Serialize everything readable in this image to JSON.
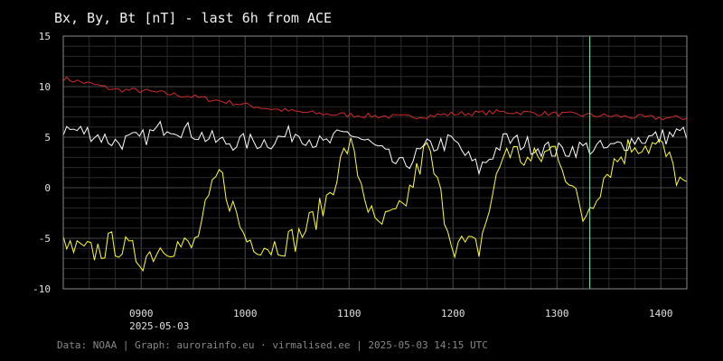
{
  "chart_data": {
    "type": "line",
    "title": "Bx, By, Bt [nT] - last 6h from ACE",
    "xlabel": "",
    "ylabel": "",
    "x_range": [
      "2025-05-03 08:15",
      "2025-05-03 14:15"
    ],
    "ylim": [
      -10,
      15
    ],
    "y_ticks": [
      15,
      10,
      5,
      0,
      -5,
      -10
    ],
    "x_ticks": [
      {
        "time": "09:00",
        "label": "0900",
        "sublabel": "2025-05-03"
      },
      {
        "time": "10:00",
        "label": "1000",
        "sublabel": ""
      },
      {
        "time": "11:00",
        "label": "1100",
        "sublabel": ""
      },
      {
        "time": "12:00",
        "label": "1200",
        "sublabel": ""
      },
      {
        "time": "13:00",
        "label": "1300",
        "sublabel": ""
      },
      {
        "time": "14:00",
        "label": "1400",
        "sublabel": ""
      }
    ],
    "grid": true,
    "marker_line": {
      "time": "13:19",
      "color": "#9ef0b8"
    },
    "series": [
      {
        "color": "#d42a2a",
        "x": [
          "08:15",
          "08:30",
          "08:45",
          "09:00",
          "09:15",
          "09:30",
          "09:45",
          "10:00",
          "10:15",
          "10:30",
          "10:45",
          "11:00",
          "11:15",
          "11:30",
          "11:45",
          "12:00",
          "12:15",
          "12:30",
          "12:45",
          "13:00",
          "13:15",
          "13:30",
          "13:45",
          "14:00",
          "14:15"
        ],
        "values": [
          10.8,
          10.3,
          9.7,
          9.6,
          9.3,
          9.0,
          8.6,
          8.2,
          7.8,
          7.5,
          7.3,
          7.2,
          7.1,
          7.0,
          7.1,
          7.3,
          7.4,
          7.5,
          7.4,
          7.3,
          7.2,
          7.1,
          7.0,
          6.9,
          6.9
        ]
      },
      {
        "color": "#ffffff",
        "x": [
          "08:15",
          "08:30",
          "08:45",
          "09:00",
          "09:15",
          "09:30",
          "09:45",
          "10:00",
          "10:15",
          "10:30",
          "10:45",
          "11:00",
          "11:15",
          "11:30",
          "11:45",
          "12:00",
          "12:15",
          "12:30",
          "12:45",
          "13:00",
          "13:15",
          "13:30",
          "13:45",
          "14:00",
          "14:15"
        ],
        "values": [
          5.8,
          5.5,
          4.5,
          4.8,
          6.2,
          5.5,
          4.5,
          4.5,
          4.6,
          5.5,
          4.2,
          5.5,
          4.0,
          2.0,
          4.0,
          4.6,
          1.8,
          4.8,
          4.2,
          3.6,
          4.0,
          3.8,
          4.8,
          5.0,
          5.5
        ]
      },
      {
        "color": "#ffff33",
        "x": [
          "08:15",
          "08:30",
          "08:45",
          "09:00",
          "09:15",
          "09:30",
          "09:45",
          "10:00",
          "10:15",
          "10:30",
          "10:45",
          "11:00",
          "11:15",
          "11:30",
          "11:45",
          "12:00",
          "12:15",
          "12:30",
          "12:45",
          "13:00",
          "13:15",
          "13:30",
          "13:45",
          "14:00",
          "14:15"
        ],
        "values": [
          -6.0,
          -6.5,
          -5.5,
          -7.0,
          -5.5,
          -6.0,
          1.5,
          -5.0,
          -5.8,
          -5.0,
          -2.0,
          4.5,
          -4.0,
          -2.5,
          4.0,
          -5.5,
          -6.0,
          4.0,
          2.5,
          4.0,
          -3.0,
          2.0,
          4.5,
          4.0,
          -0.5
        ]
      }
    ]
  },
  "footer": "Data: NOAA | Graph: aurorainfo.eu · virmalised.ee | 2025-05-03 14:15 UTC",
  "colors": {
    "background": "#000000",
    "grid": "#333333",
    "frame": "#888888",
    "text": "#e0e0e0",
    "footer": "#888888"
  }
}
